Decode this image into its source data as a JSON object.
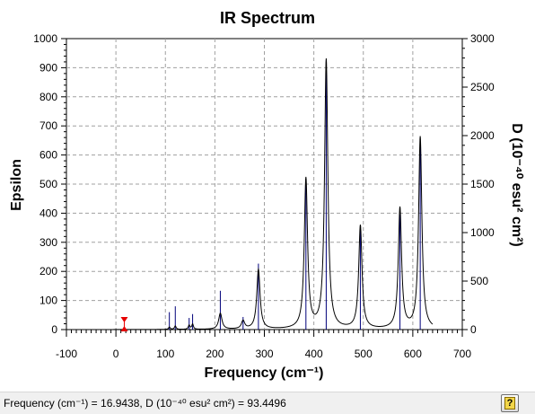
{
  "chart_data": {
    "type": "line",
    "title": "IR Spectrum",
    "xlabel": "Frequency (cm⁻¹)",
    "ylabel": "Epsilon",
    "y2label": "D (10⁻⁴⁰ esu² cm²)",
    "xlim": [
      -100,
      700
    ],
    "ylim": [
      0,
      1000
    ],
    "y2lim": [
      0,
      3000
    ],
    "x_ticks": [
      -100,
      0,
      100,
      200,
      300,
      400,
      500,
      600,
      700
    ],
    "y_ticks": [
      0,
      100,
      200,
      300,
      400,
      500,
      600,
      700,
      800,
      900,
      1000
    ],
    "y2_ticks": [
      0,
      500,
      1000,
      1500,
      2000,
      2500,
      3000
    ],
    "grid": true,
    "curve_x_range": [
      -5,
      640
    ],
    "curve_color": "#000000",
    "stick_color": "#00007a",
    "peaks": [
      {
        "freq": 108,
        "epsilon": 8,
        "D": 180,
        "hwhm": 2
      },
      {
        "freq": 120,
        "epsilon": 12,
        "D": 240,
        "hwhm": 2
      },
      {
        "freq": 148,
        "epsilon": 14,
        "D": 120,
        "hwhm": 2
      },
      {
        "freq": 155,
        "epsilon": 18,
        "D": 160,
        "hwhm": 2
      },
      {
        "freq": 211,
        "epsilon": 55,
        "D": 400,
        "hwhm": 4
      },
      {
        "freq": 257,
        "epsilon": 28,
        "D": 130,
        "hwhm": 4
      },
      {
        "freq": 288,
        "epsilon": 205,
        "D": 680,
        "hwhm": 4
      },
      {
        "freq": 384,
        "epsilon": 515,
        "D": 1550,
        "hwhm": 4
      },
      {
        "freq": 425,
        "epsilon": 925,
        "D": 2780,
        "hwhm": 4
      },
      {
        "freq": 494,
        "epsilon": 355,
        "D": 1030,
        "hwhm": 4
      },
      {
        "freq": 574,
        "epsilon": 415,
        "D": 1190,
        "hwhm": 4
      },
      {
        "freq": 615,
        "epsilon": 660,
        "D": 1930,
        "hwhm": 4
      }
    ],
    "marker": {
      "freq": 16.9438,
      "color": "#e60000"
    }
  },
  "status": {
    "text": "Frequency (cm⁻¹) = 16.9438, D (10⁻⁴⁰ esu² cm²) = 93.4496"
  },
  "help_icon_glyph": "?"
}
